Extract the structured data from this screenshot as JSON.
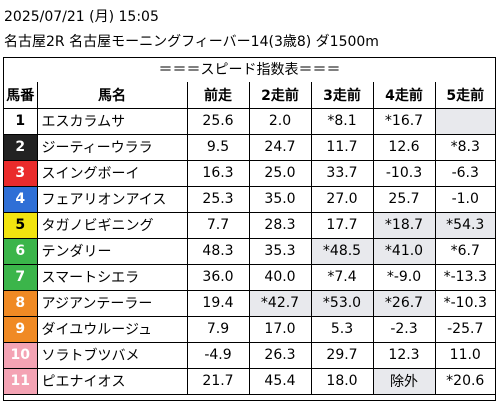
{
  "header": {
    "date_line": "2025/07/21 (月) 15:05",
    "race_line": "名古屋2R 名古屋モーニングフィーバー14(3歳8) ダ1500m"
  },
  "table": {
    "section_title": "＝＝＝スピード指数表＝＝＝",
    "columns": [
      "馬番",
      "馬名",
      "前走",
      "2走前",
      "3走前",
      "4走前",
      "5走前"
    ],
    "rows": [
      {
        "num": "1",
        "num_bg": "#ffffff",
        "num_fg": "#000000",
        "name": "エスカラムサ",
        "values": [
          "25.6",
          "2.0",
          "*8.1",
          "*16.7",
          ""
        ],
        "highlight": [
          false,
          false,
          false,
          false,
          true
        ]
      },
      {
        "num": "2",
        "num_bg": "#222222",
        "num_fg": "#ffffff",
        "name": "ジーティーウララ",
        "values": [
          "9.5",
          "24.7",
          "11.7",
          "12.6",
          "*8.3"
        ],
        "highlight": [
          false,
          false,
          false,
          false,
          false
        ]
      },
      {
        "num": "3",
        "num_bg": "#ea2b2b",
        "num_fg": "#ffffff",
        "name": "スイングボーイ",
        "values": [
          "16.3",
          "25.0",
          "33.7",
          "-10.3",
          "-6.3"
        ],
        "highlight": [
          false,
          false,
          false,
          false,
          false
        ]
      },
      {
        "num": "4",
        "num_bg": "#2f6fd6",
        "num_fg": "#ffffff",
        "name": "フェアリオンアイス",
        "values": [
          "25.3",
          "35.0",
          "27.0",
          "25.7",
          "-1.0"
        ],
        "highlight": [
          false,
          false,
          false,
          false,
          false
        ]
      },
      {
        "num": "5",
        "num_bg": "#f2e40f",
        "num_fg": "#000000",
        "name": "タガノビギニング",
        "values": [
          "7.7",
          "28.3",
          "17.7",
          "*18.7",
          "*54.3"
        ],
        "highlight": [
          false,
          false,
          false,
          true,
          true
        ]
      },
      {
        "num": "6",
        "num_bg": "#3bb54a",
        "num_fg": "#ffffff",
        "name": "テンダリー",
        "values": [
          "48.3",
          "35.3",
          "*48.5",
          "*41.0",
          "*6.7"
        ],
        "highlight": [
          false,
          false,
          true,
          true,
          false
        ]
      },
      {
        "num": "7",
        "num_bg": "#3bb54a",
        "num_fg": "#ffffff",
        "name": "スマートシエラ",
        "values": [
          "36.0",
          "40.0",
          "*7.4",
          "*-9.0",
          "*-13.3"
        ],
        "highlight": [
          false,
          false,
          false,
          false,
          false
        ]
      },
      {
        "num": "8",
        "num_bg": "#f08a24",
        "num_fg": "#ffffff",
        "name": "アジアンテーラー",
        "values": [
          "19.4",
          "*42.7",
          "*53.0",
          "*26.7",
          "*-10.3"
        ],
        "highlight": [
          false,
          true,
          true,
          true,
          false
        ]
      },
      {
        "num": "9",
        "num_bg": "#f08a24",
        "num_fg": "#ffffff",
        "name": "ダイユウルージュ",
        "values": [
          "7.9",
          "17.0",
          "5.3",
          "-2.3",
          "-25.7"
        ],
        "highlight": [
          false,
          false,
          false,
          false,
          false
        ]
      },
      {
        "num": "10",
        "num_bg": "#f4a3b4",
        "num_fg": "#ffffff",
        "name": "ソラトブツバメ",
        "values": [
          "-4.9",
          "26.3",
          "29.7",
          "12.3",
          "11.0"
        ],
        "highlight": [
          false,
          false,
          false,
          false,
          false
        ]
      },
      {
        "num": "11",
        "num_bg": "#f4a3b4",
        "num_fg": "#ffffff",
        "name": "ピエナイオス",
        "values": [
          "21.7",
          "45.4",
          "18.0",
          "除外",
          "*20.6"
        ],
        "highlight": [
          false,
          false,
          false,
          true,
          false
        ]
      }
    ]
  }
}
